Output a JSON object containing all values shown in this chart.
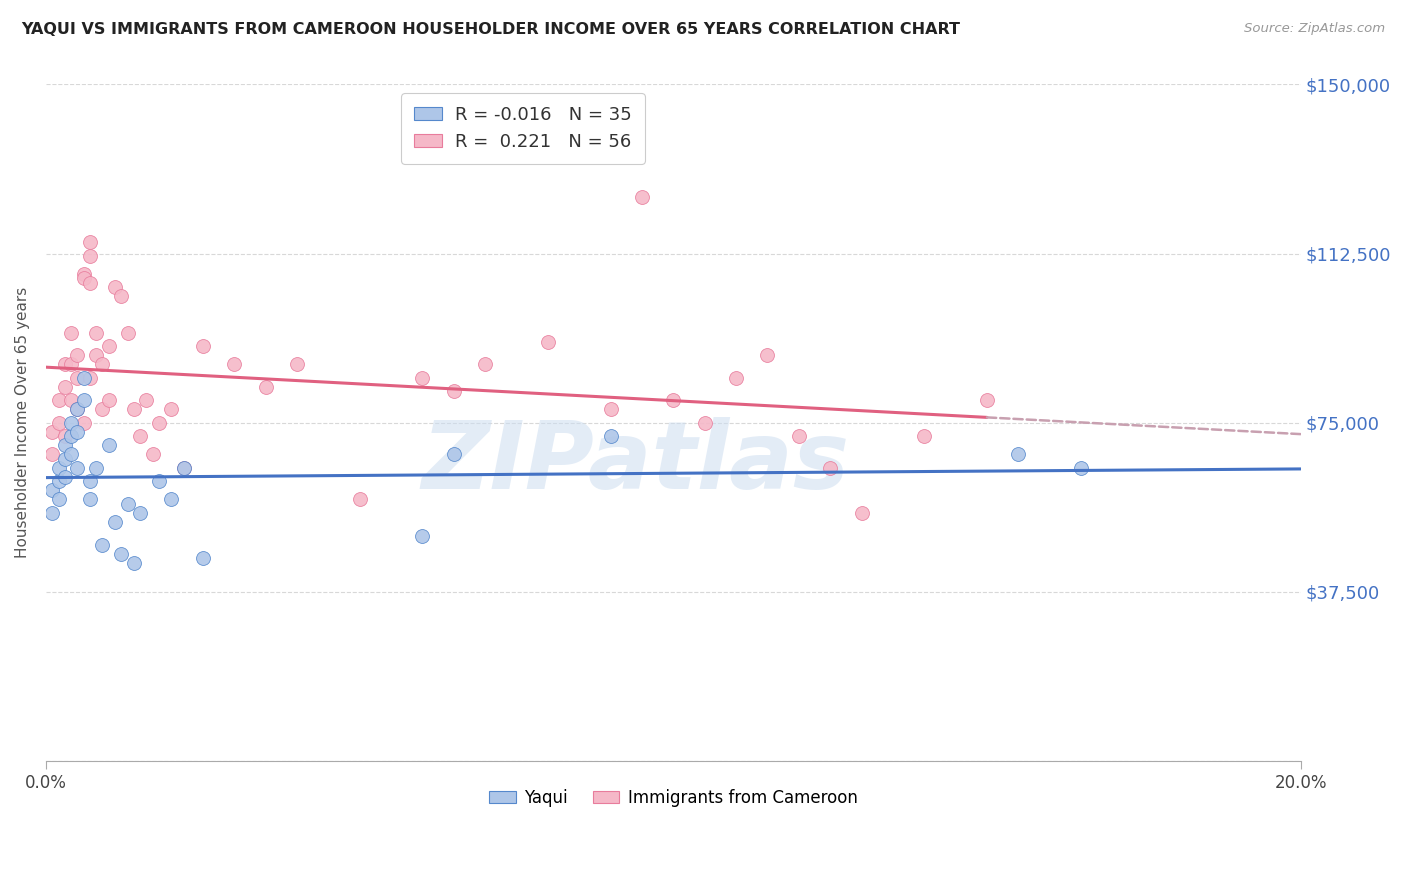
{
  "title": "YAQUI VS IMMIGRANTS FROM CAMEROON HOUSEHOLDER INCOME OVER 65 YEARS CORRELATION CHART",
  "source": "Source: ZipAtlas.com",
  "ylabel": "Householder Income Over 65 years",
  "xmin": 0.0,
  "xmax": 0.2,
  "ymin": 0,
  "ymax": 150000,
  "yticks": [
    0,
    37500,
    75000,
    112500,
    150000
  ],
  "ytick_labels": [
    "",
    "$37,500",
    "$75,000",
    "$112,500",
    "$150,000"
  ],
  "xtick_labels": [
    "0.0%",
    "20.0%"
  ],
  "legend_label_blue": "R = -0.016   N = 35",
  "legend_label_pink": "R =  0.221   N = 56",
  "bottom_legend_labels": [
    "Yaqui",
    "Immigrants from Cameroon"
  ],
  "watermark": "ZIPatlas",
  "blue_scatter_x": [
    0.001,
    0.001,
    0.002,
    0.002,
    0.002,
    0.003,
    0.003,
    0.003,
    0.004,
    0.004,
    0.004,
    0.005,
    0.005,
    0.005,
    0.006,
    0.006,
    0.007,
    0.007,
    0.008,
    0.009,
    0.01,
    0.011,
    0.012,
    0.013,
    0.014,
    0.015,
    0.018,
    0.02,
    0.022,
    0.025,
    0.06,
    0.065,
    0.09,
    0.155,
    0.165
  ],
  "blue_scatter_y": [
    60000,
    55000,
    62000,
    58000,
    65000,
    67000,
    63000,
    70000,
    72000,
    68000,
    75000,
    73000,
    78000,
    65000,
    80000,
    85000,
    62000,
    58000,
    65000,
    48000,
    70000,
    53000,
    46000,
    57000,
    44000,
    55000,
    62000,
    58000,
    65000,
    45000,
    50000,
    68000,
    72000,
    68000,
    65000
  ],
  "pink_scatter_x": [
    0.001,
    0.001,
    0.002,
    0.002,
    0.003,
    0.003,
    0.003,
    0.004,
    0.004,
    0.004,
    0.005,
    0.005,
    0.005,
    0.006,
    0.006,
    0.006,
    0.007,
    0.007,
    0.007,
    0.007,
    0.008,
    0.008,
    0.009,
    0.009,
    0.01,
    0.01,
    0.011,
    0.012,
    0.013,
    0.014,
    0.015,
    0.016,
    0.017,
    0.018,
    0.02,
    0.022,
    0.025,
    0.03,
    0.035,
    0.04,
    0.05,
    0.06,
    0.065,
    0.07,
    0.08,
    0.09,
    0.095,
    0.1,
    0.105,
    0.11,
    0.115,
    0.12,
    0.125,
    0.13,
    0.14,
    0.15
  ],
  "pink_scatter_y": [
    68000,
    73000,
    75000,
    80000,
    83000,
    88000,
    72000,
    95000,
    88000,
    80000,
    85000,
    90000,
    78000,
    108000,
    107000,
    75000,
    112000,
    106000,
    115000,
    85000,
    95000,
    90000,
    88000,
    78000,
    92000,
    80000,
    105000,
    103000,
    95000,
    78000,
    72000,
    80000,
    68000,
    75000,
    78000,
    65000,
    92000,
    88000,
    83000,
    88000,
    58000,
    85000,
    82000,
    88000,
    93000,
    78000,
    125000,
    80000,
    75000,
    85000,
    90000,
    72000,
    65000,
    55000,
    72000,
    80000
  ],
  "blue_line_color": "#4472c4",
  "pink_line_color": "#e06080",
  "pink_dash_color": "#c8a0b0",
  "grid_color": "#d8d8d8",
  "background_color": "#ffffff",
  "title_color": "#222222",
  "axis_label_color": "#555555",
  "right_tick_color": "#4472c4",
  "marker_size": 100,
  "blue_marker_color": "#aec6e8",
  "pink_marker_color": "#f5b8c8"
}
